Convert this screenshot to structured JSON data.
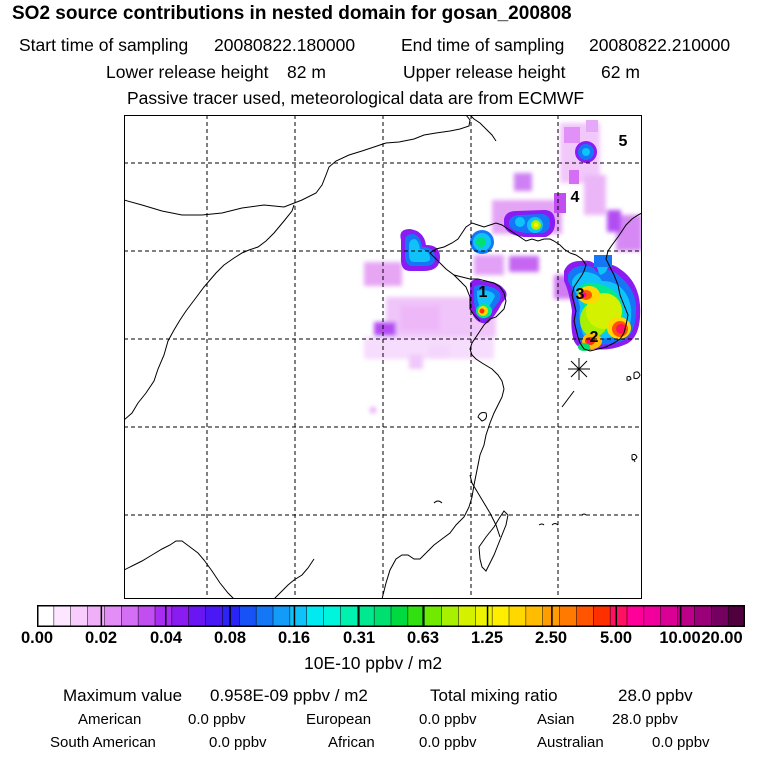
{
  "title": "SO2 source contributions in nested domain for gosan_200808",
  "sampling": {
    "start_label": "Start time of sampling",
    "start_value": "20080822.180000",
    "end_label": "End time of sampling",
    "end_value": "20080822.210000"
  },
  "release": {
    "lower_label": "Lower release height",
    "lower_value": "82 m",
    "upper_label": "Upper release height",
    "upper_value": "62 m"
  },
  "tracer_note": "Passive tracer used, meteorological data are from ECMWF",
  "map": {
    "source_labels": [
      "1",
      "2",
      "3",
      "4",
      "5"
    ],
    "receptor_marker": "receptor-asterisk"
  },
  "colorbar": {
    "ticks": [
      "0.00",
      "0.02",
      "0.04",
      "0.08",
      "0.16",
      "0.31",
      "0.63",
      "1.25",
      "2.50",
      "5.00",
      "10.00",
      "20.00"
    ],
    "unit": "10E-10 ppbv / m2",
    "colors": [
      "#ffffff",
      "#fde6ff",
      "#f8ccfc",
      "#f0b0f8",
      "#e38ef6",
      "#d46ef4",
      "#c24ef2",
      "#a92cf2",
      "#8a1cf2",
      "#6a16f2",
      "#4a18f4",
      "#2a24f6",
      "#1652f6",
      "#1478f6",
      "#129cf8",
      "#10c2fa",
      "#00eaf0",
      "#00f6dc",
      "#00f0b0",
      "#00e890",
      "#00e070",
      "#00da40",
      "#30e010",
      "#70ea00",
      "#a6f000",
      "#d4f200",
      "#eef400",
      "#ffee00",
      "#ffd800",
      "#ffbc00",
      "#ff9c00",
      "#ff7a00",
      "#ff5400",
      "#ff3000",
      "#ff1060",
      "#ff0098",
      "#f2009e",
      "#da0096",
      "#bc008a",
      "#9a0078",
      "#760060",
      "#50003c"
    ]
  },
  "summary": {
    "max_label": "Maximum value",
    "max_value": "0.958E-09 ppbv / m2",
    "total_label": "Total mixing ratio",
    "total_value": "28.0 ppbv",
    "regions": [
      {
        "name": "American",
        "value": "0.0 ppbv"
      },
      {
        "name": "European",
        "value": "0.0 ppbv"
      },
      {
        "name": "Asian",
        "value": "28.0 ppbv"
      },
      {
        "name": "South American",
        "value": "0.0 ppbv"
      },
      {
        "name": "African",
        "value": "0.0 ppbv"
      },
      {
        "name": "Australian",
        "value": "0.0 ppbv"
      }
    ]
  }
}
